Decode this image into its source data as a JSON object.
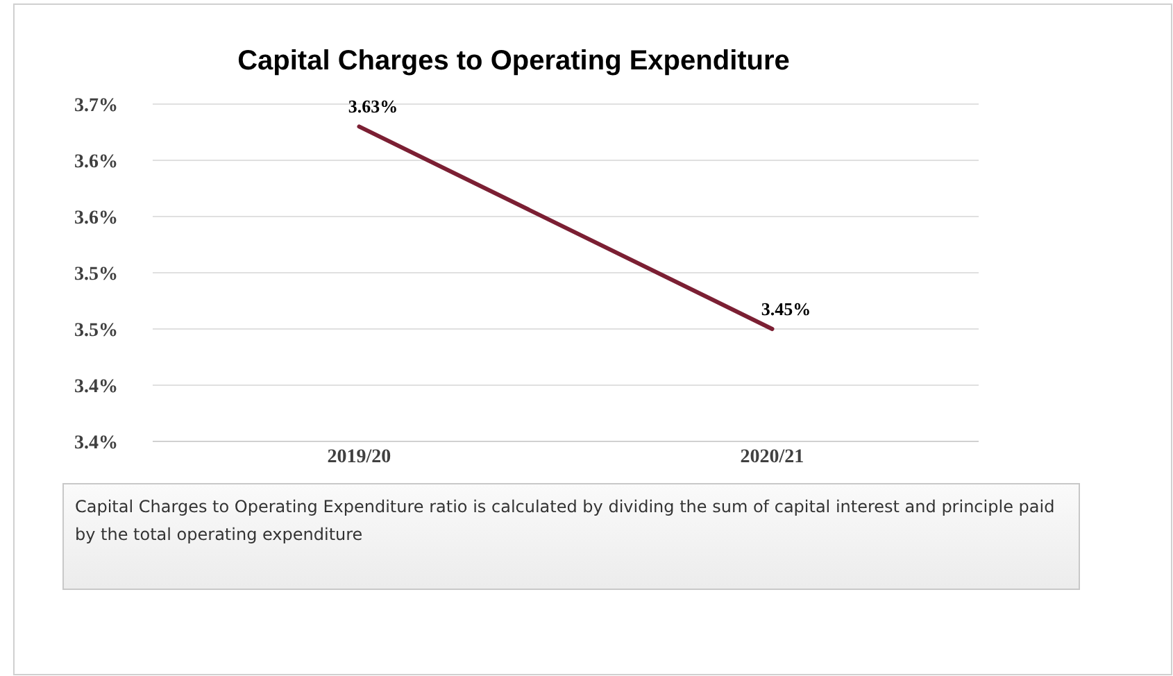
{
  "chart_data": {
    "type": "line",
    "title": "Capital Charges to Operating Expenditure",
    "categories": [
      "2019/20",
      "2020/21"
    ],
    "series": [
      {
        "color": "#7b1f33",
        "values": [
          3.63,
          3.45
        ],
        "value_labels": [
          "3.63%",
          "3.45%"
        ]
      }
    ],
    "ylim": [
      3.35,
      3.65
    ],
    "yticks": [
      {
        "value": 3.35,
        "label": "3.4%"
      },
      {
        "value": 3.4,
        "label": "3.4%"
      },
      {
        "value": 3.45,
        "label": "3.5%"
      },
      {
        "value": 3.5,
        "label": "3.5%"
      },
      {
        "value": 3.55,
        "label": "3.6%"
      },
      {
        "value": 3.6,
        "label": "3.6%"
      },
      {
        "value": 3.65,
        "label": "3.7%"
      }
    ],
    "grid": "y",
    "marker": "none",
    "line_style": "solid",
    "annotations": [
      "Capital Charges to Operating Expenditure  ratio is calculated by dividing the sum of capital interest and principle paid by the total operating expenditure"
    ]
  }
}
